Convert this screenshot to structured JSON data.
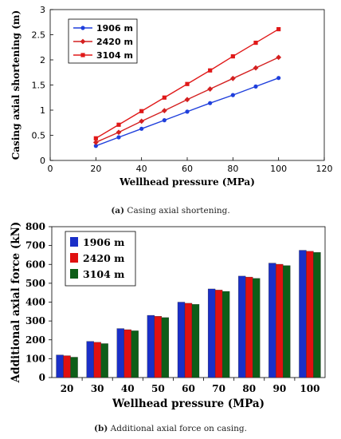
{
  "captions": [
    {
      "label": "(a)",
      "text": " Casing axial shortening."
    },
    {
      "label": "(b)",
      "text": " Additional axial force on casing."
    }
  ],
  "chart_data": [
    {
      "type": "line",
      "xlabel": "Wellhead pressure (MPa)",
      "ylabel": "Casing axial shortening (m)",
      "xlim": [
        0,
        120
      ],
      "ylim": [
        0,
        3
      ],
      "xticks": [
        "0",
        "20",
        "40",
        "60",
        "80",
        "100",
        "120"
      ],
      "yticks": [
        "0",
        "0.5",
        "1",
        "1.5",
        "2",
        "2.5",
        "3"
      ],
      "grid": false,
      "legend_position": "top-left",
      "x": [
        20,
        30,
        40,
        50,
        60,
        70,
        80,
        90,
        100
      ],
      "series": [
        {
          "name": "1906 m",
          "color": "#1f3fdc",
          "marker": "circle",
          "values": [
            0.29,
            0.46,
            0.63,
            0.8,
            0.97,
            1.14,
            1.3,
            1.47,
            1.64
          ]
        },
        {
          "name": "2420 m",
          "color": "#d42020",
          "marker": "diamond",
          "values": [
            0.36,
            0.56,
            0.78,
            0.99,
            1.21,
            1.42,
            1.63,
            1.84,
            2.05
          ]
        },
        {
          "name": "3104 m",
          "color": "#e01818",
          "marker": "square",
          "values": [
            0.44,
            0.71,
            0.98,
            1.25,
            1.52,
            1.79,
            2.07,
            2.34,
            2.61
          ]
        }
      ]
    },
    {
      "type": "bar",
      "xlabel": "Wellhead pressure (MPa)",
      "ylabel": "Additional axial force (kN)",
      "ylim": [
        0,
        800
      ],
      "yticks": [
        "0",
        "100",
        "200",
        "300",
        "400",
        "500",
        "600",
        "700",
        "800"
      ],
      "grid": false,
      "legend_position": "top-left",
      "categories": [
        "20",
        "30",
        "40",
        "50",
        "60",
        "70",
        "80",
        "90",
        "100"
      ],
      "series": [
        {
          "name": "1906  m",
          "color": "#1a2fc8",
          "values": [
            120,
            192,
            260,
            330,
            400,
            470,
            538,
            607,
            675
          ]
        },
        {
          "name": "2420  m",
          "color": "#e01010",
          "values": [
            116,
            187,
            254,
            325,
            394,
            464,
            533,
            601,
            670
          ]
        },
        {
          "name": "3104  m",
          "color": "#0d5e18",
          "values": [
            108,
            180,
            248,
            318,
            388,
            457,
            526,
            594,
            664
          ]
        }
      ]
    }
  ]
}
